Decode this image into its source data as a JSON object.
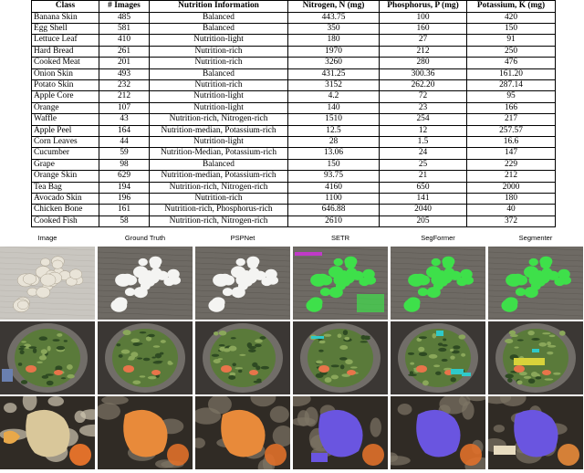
{
  "table": {
    "headers": [
      "Class",
      "# Images",
      "Nutrition Information",
      "Nitrogen, N (mg)",
      "Phosphorus, P (mg)",
      "Potassium, K (mg)"
    ],
    "rows": [
      [
        "Banana Skin",
        "485",
        "Balanced",
        "443.75",
        "100",
        "420"
      ],
      [
        "Egg Shell",
        "581",
        "Balanced",
        "350",
        "160",
        "150"
      ],
      [
        "Lettuce Leaf",
        "410",
        "Nutrition-light",
        "180",
        "27",
        "91"
      ],
      [
        "Hard Bread",
        "261",
        "Nutrition-rich",
        "1970",
        "212",
        "250"
      ],
      [
        "Cooked Meat",
        "201",
        "Nutrition-rich",
        "3260",
        "280",
        "476"
      ],
      [
        "Onion Skin",
        "493",
        "Balanced",
        "431.25",
        "300.36",
        "161.20"
      ],
      [
        "Potato Skin",
        "232",
        "Nutrition-rich",
        "3152",
        "262.20",
        "287.14"
      ],
      [
        "Apple Core",
        "212",
        "Nutrition-light",
        "4.2",
        "72",
        "95"
      ],
      [
        "Orange",
        "107",
        "Nutrition-light",
        "140",
        "23",
        "166"
      ],
      [
        "Waffle",
        "43",
        "Nutrition-rich, Nitrogen-rich",
        "1510",
        "254",
        "217"
      ],
      [
        "Apple Peel",
        "164",
        "Nutrition-median, Potassium-rich",
        "12.5",
        "12",
        "257.57"
      ],
      [
        "Corn Leaves",
        "44",
        "Nutrition-light",
        "28",
        "1.5",
        "16.6"
      ],
      [
        "Cucumber",
        "59",
        "Nutrition-Median, Potassium-rich",
        "13.06",
        "24",
        "147"
      ],
      [
        "Grape",
        "98",
        "Balanced",
        "150",
        "25",
        "229"
      ],
      [
        "Orange Skin",
        "629",
        "Nutrition-median, Potassium-rich",
        "93.75",
        "21",
        "212"
      ],
      [
        "Tea Bag",
        "194",
        "Nutrition-rich, Nitrogen-rich",
        "4160",
        "650",
        "2000"
      ],
      [
        "Avocado Skin",
        "196",
        "Nutrition-rich",
        "1100",
        "141",
        "180"
      ],
      [
        "Chicken Bone",
        "161",
        "Nutrition-rich, Phosphorus-rich",
        "646.88",
        "2040",
        "40"
      ],
      [
        "Cooked Fish",
        "58",
        "Nutrition-rich, Nitrogen-rich",
        "2610",
        "205",
        "372"
      ]
    ]
  },
  "figure": {
    "columns": [
      "Image",
      "Ground Truth",
      "PSPNet",
      "SETR",
      "SegFormer",
      "Segmenter"
    ],
    "colors": {
      "background": "#3a3530",
      "napkin": "#c9c6c0",
      "eggshell": "#e9e4d8",
      "gt_white": "#f4f4f2",
      "seg_green": "#3ee04a",
      "seg_magenta": "#c03ac8",
      "seg_cyan": "#2fc9c9",
      "seg_yellow": "#d8d23a",
      "salad_green": "#5a7a3a",
      "salmon": "#e8744a",
      "seg_orange": "#e88a3a",
      "seg_purple": "#6a55e0",
      "seg_beige": "#e8dcc0"
    }
  }
}
